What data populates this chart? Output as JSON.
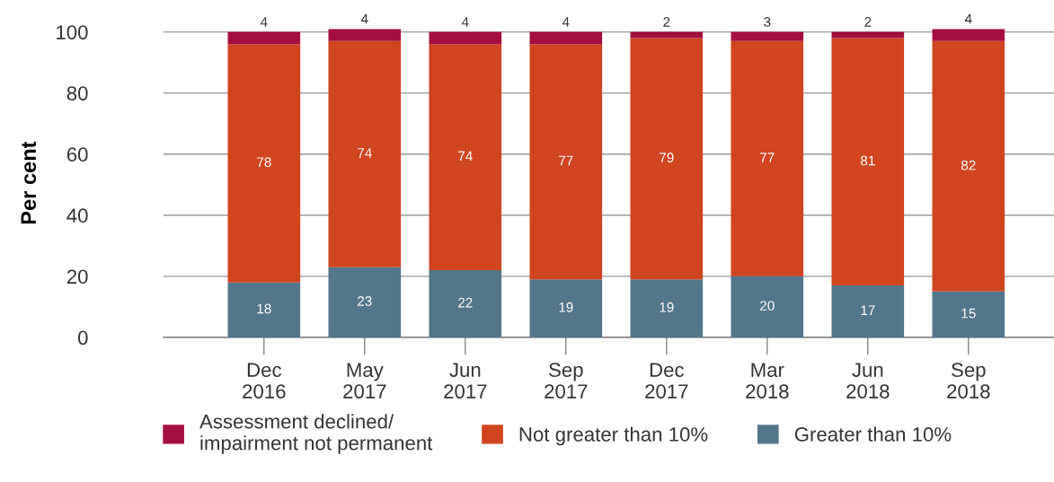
{
  "chart_data": {
    "type": "bar",
    "stacked": true,
    "ylabel": "Per cent",
    "categories": [
      "Dec\n2016",
      "May\n2017",
      "Jun\n2017",
      "Sep\n2017",
      "Dec\n2017",
      "Mar\n2018",
      "Jun\n2018",
      "Sep\n2018"
    ],
    "series": [
      {
        "name": "Greater than 10%",
        "color": "#52768c",
        "values": [
          18,
          23,
          22,
          19,
          19,
          20,
          17,
          15
        ]
      },
      {
        "name": "Not greater than 10%",
        "color": "#d04420",
        "values": [
          78,
          74,
          74,
          77,
          79,
          77,
          81,
          82
        ]
      },
      {
        "name": "Assessment declined/\nimpairment not permanent",
        "color": "#a50f3f",
        "values": [
          4,
          4,
          4,
          4,
          2,
          3,
          2,
          4
        ]
      }
    ],
    "ylim": [
      0,
      101
    ],
    "yticks": [
      0,
      20,
      40,
      60,
      80,
      100
    ],
    "grid": "y",
    "legend": "bottom",
    "data_labels": true
  }
}
